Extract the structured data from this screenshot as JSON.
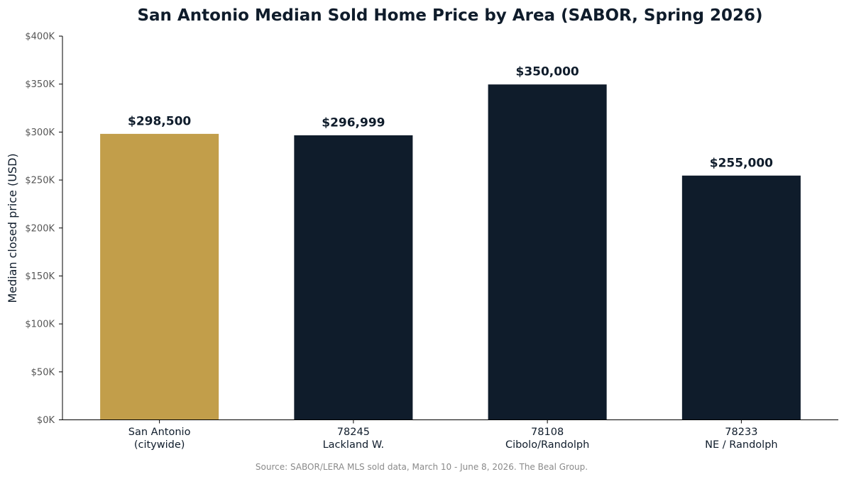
{
  "chart_data": {
    "type": "bar",
    "title": "San Antonio Median Sold Home Price by Area (SABOR, Spring 2026)",
    "xlabel": "",
    "ylabel": "Median closed price (USD)",
    "ylim": [
      0,
      400000
    ],
    "yticks": [
      0,
      50000,
      100000,
      150000,
      200000,
      250000,
      300000,
      350000,
      400000
    ],
    "ytick_labels": [
      "$0K",
      "$50K",
      "$100K",
      "$150K",
      "$200K",
      "$250K",
      "$300K",
      "$350K",
      "$400K"
    ],
    "categories": [
      [
        "San Antonio",
        "(citywide)"
      ],
      [
        "78245",
        "Lackland W."
      ],
      [
        "78108",
        "Cibolo/Randolph"
      ],
      [
        "78233",
        "NE / Randolph"
      ]
    ],
    "values": [
      298500,
      296999,
      350000,
      255000
    ],
    "data_labels": [
      "$298,500",
      "$296,999",
      "$350,000",
      "$255,000"
    ],
    "bar_colors": [
      "#c29e4a",
      "#0f1c2b",
      "#0f1c2b",
      "#0f1c2b"
    ],
    "grid": false,
    "source": "Source: SABOR/LERA MLS sold data, March 10 - June 8, 2026. The Beal Group."
  }
}
